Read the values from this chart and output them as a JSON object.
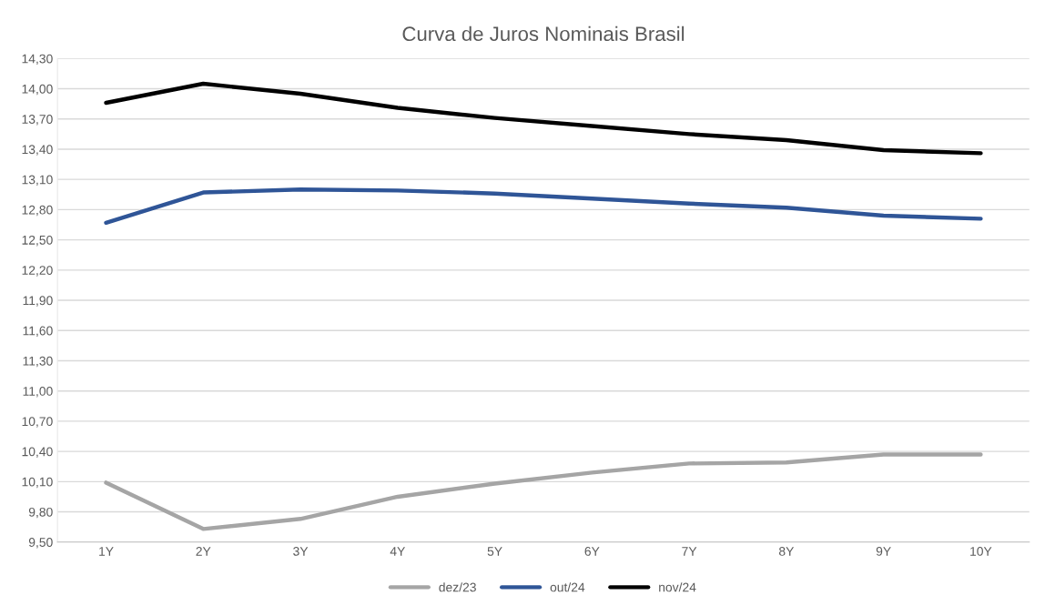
{
  "chart_data": {
    "type": "line",
    "title": "Curva de Juros Nominais Brasil",
    "categories": [
      "1Y",
      "2Y",
      "3Y",
      "4Y",
      "5Y",
      "6Y",
      "7Y",
      "8Y",
      "9Y",
      "10Y"
    ],
    "series": [
      {
        "name": "dez/23",
        "color": "#a5a5a5",
        "values": [
          10.09,
          9.63,
          9.73,
          9.95,
          10.08,
          10.19,
          10.28,
          10.29,
          10.37,
          10.37
        ]
      },
      {
        "name": "out/24",
        "color": "#2f5597",
        "values": [
          12.67,
          12.97,
          13.0,
          12.99,
          12.96,
          12.91,
          12.86,
          12.82,
          12.74,
          12.71
        ]
      },
      {
        "name": "nov/24",
        "color": "#000000",
        "values": [
          13.86,
          14.05,
          13.95,
          13.81,
          13.71,
          13.63,
          13.55,
          13.49,
          13.39,
          13.36
        ]
      }
    ],
    "ylim": [
      9.5,
      14.3
    ],
    "yticks": [
      {
        "value": 9.5,
        "label": "9,50"
      },
      {
        "value": 9.8,
        "label": "9,80"
      },
      {
        "value": 10.1,
        "label": "10,10"
      },
      {
        "value": 10.4,
        "label": "10,40"
      },
      {
        "value": 10.7,
        "label": "10,70"
      },
      {
        "value": 11.0,
        "label": "11,00"
      },
      {
        "value": 11.3,
        "label": "11,30"
      },
      {
        "value": 11.6,
        "label": "11,60"
      },
      {
        "value": 11.9,
        "label": "11,90"
      },
      {
        "value": 12.2,
        "label": "12,20"
      },
      {
        "value": 12.5,
        "label": "12,50"
      },
      {
        "value": 12.8,
        "label": "12,80"
      },
      {
        "value": 13.1,
        "label": "13,10"
      },
      {
        "value": 13.4,
        "label": "13,40"
      },
      {
        "value": 13.7,
        "label": "13,70"
      },
      {
        "value": 14.0,
        "label": "14,00"
      },
      {
        "value": 14.3,
        "label": "14,30"
      }
    ],
    "grid": "y",
    "legend": "bottom",
    "marker": "none",
    "line_style": "solid"
  }
}
